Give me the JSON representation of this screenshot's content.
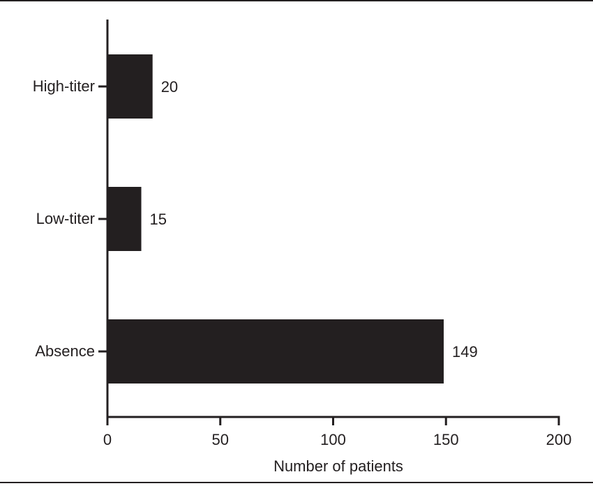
{
  "chart_data": {
    "type": "bar",
    "orientation": "horizontal",
    "categories": [
      "High-titer",
      "Low-titer",
      "Absence"
    ],
    "values": [
      20,
      15,
      149
    ],
    "data_labels": [
      "20",
      "15",
      "149"
    ],
    "title": "",
    "xlabel": "Number of patients",
    "ylabel": "",
    "xlim": [
      0,
      200
    ],
    "xticks": [
      0,
      50,
      100,
      150,
      200
    ],
    "xtick_labels": [
      "0",
      "50",
      "100",
      "150",
      "200"
    ],
    "grid": false,
    "legend": "none",
    "bar_color": "#231f20"
  }
}
